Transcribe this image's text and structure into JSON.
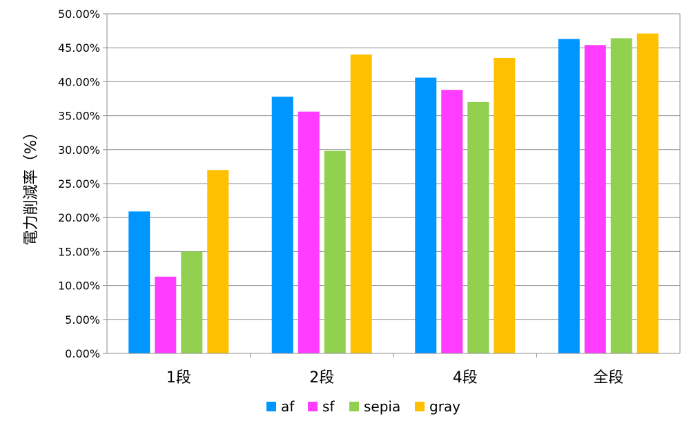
{
  "chart_data": {
    "type": "bar",
    "title": "",
    "xlabel": "",
    "ylabel": "電力削減率（%）",
    "categories": [
      "1段",
      "2段",
      "4段",
      "全段"
    ],
    "series": [
      {
        "name": "af",
        "color": "#0096FF",
        "values": [
          20.9,
          37.8,
          40.6,
          46.3
        ]
      },
      {
        "name": "sf",
        "color": "#FF3CFF",
        "values": [
          11.3,
          35.6,
          38.8,
          45.4
        ]
      },
      {
        "name": "sepia",
        "color": "#92D050",
        "values": [
          15.0,
          29.8,
          37.0,
          46.4
        ]
      },
      {
        "name": "gray",
        "color": "#FFC000",
        "values": [
          27.0,
          44.0,
          43.5,
          47.1
        ]
      }
    ],
    "ylim": [
      0,
      50
    ],
    "yticks": [
      "0.00%",
      "5.00%",
      "10.00%",
      "15.00%",
      "20.00%",
      "25.00%",
      "30.00%",
      "35.00%",
      "40.00%",
      "45.00%",
      "50.00%"
    ],
    "grid": true,
    "legend_position": "bottom"
  }
}
